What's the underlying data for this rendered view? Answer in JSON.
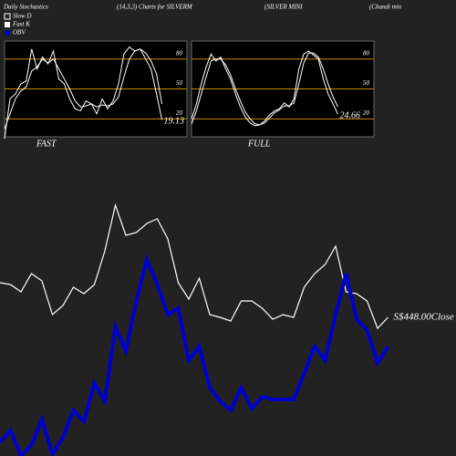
{
  "header": {
    "title": "Daily Stochastics",
    "params": "(14,3,3) Charts for SILVERM",
    "name": "(SILVER MINI",
    "sector": "(Chandi  min"
  },
  "chart_data": [
    {
      "type": "stochastic",
      "title": "FAST",
      "ylim": [
        2,
        98
      ],
      "yticks": [
        20,
        50,
        80
      ],
      "grid": true,
      "grid_color": "#cc8800",
      "series": [
        {
          "name": "Fast K",
          "color": "#ffffff",
          "values": [
            0,
            40,
            45,
            55,
            58,
            90,
            70,
            82,
            75,
            88,
            60,
            55,
            40,
            30,
            28,
            38,
            35,
            25,
            40,
            30,
            38,
            55,
            85,
            92,
            88,
            90,
            80,
            70,
            45,
            19.13
          ]
        },
        {
          "name": "Slow D",
          "color": "#ffffff",
          "values": [
            10,
            25,
            40,
            48,
            52,
            68,
            72,
            80,
            76,
            80,
            70,
            60,
            50,
            38,
            32,
            33,
            35,
            32,
            34,
            33,
            35,
            42,
            62,
            80,
            88,
            90,
            86,
            78,
            65,
            35
          ]
        }
      ]
    },
    {
      "type": "stochastic",
      "title": "FULL",
      "ylim": [
        2,
        98
      ],
      "yticks": [
        20,
        50,
        80
      ],
      "grid": true,
      "grid_color": "#cc8800",
      "series": [
        {
          "color": "#ffffff",
          "values": [
            20,
            35,
            55,
            72,
            85,
            78,
            82,
            70,
            60,
            45,
            32,
            22,
            16,
            13,
            14,
            18,
            24,
            28,
            30,
            36,
            32,
            40,
            70,
            85,
            88,
            84,
            80,
            60,
            45,
            35,
            24.66
          ]
        },
        {
          "color": "#ffffff",
          "values": [
            15,
            28,
            45,
            62,
            78,
            80,
            80,
            74,
            64,
            50,
            38,
            27,
            20,
            15,
            14,
            16,
            21,
            26,
            29,
            33,
            33,
            36,
            55,
            76,
            86,
            86,
            82,
            70,
            55,
            42,
            32
          ]
        }
      ]
    },
    {
      "type": "line",
      "ylim": [
        0,
        500
      ],
      "annotation": "S$448.00Close",
      "series": [
        {
          "color": "#ffffff",
          "values": [
            190,
            188,
            180,
            200,
            192,
            155,
            165,
            185,
            178,
            188,
            225,
            275,
            242,
            245,
            255,
            260,
            238,
            190,
            172,
            195,
            155,
            152,
            148,
            170,
            170,
            162,
            150,
            155,
            152,
            185,
            200,
            210,
            230,
            180,
            178,
            170,
            140,
            152
          ]
        },
        {
          "name": "OBV",
          "color": "#0000cc",
          "values": [
            15,
            28,
            0,
            12,
            40,
            2,
            20,
            50,
            38,
            80,
            60,
            142,
            115,
            170,
            215,
            188,
            155,
            162,
            105,
            120,
            75,
            60,
            50,
            75,
            52,
            65,
            62,
            62,
            62,
            90,
            120,
            105,
            155,
            200,
            150,
            138,
            102,
            120
          ]
        }
      ]
    }
  ]
}
